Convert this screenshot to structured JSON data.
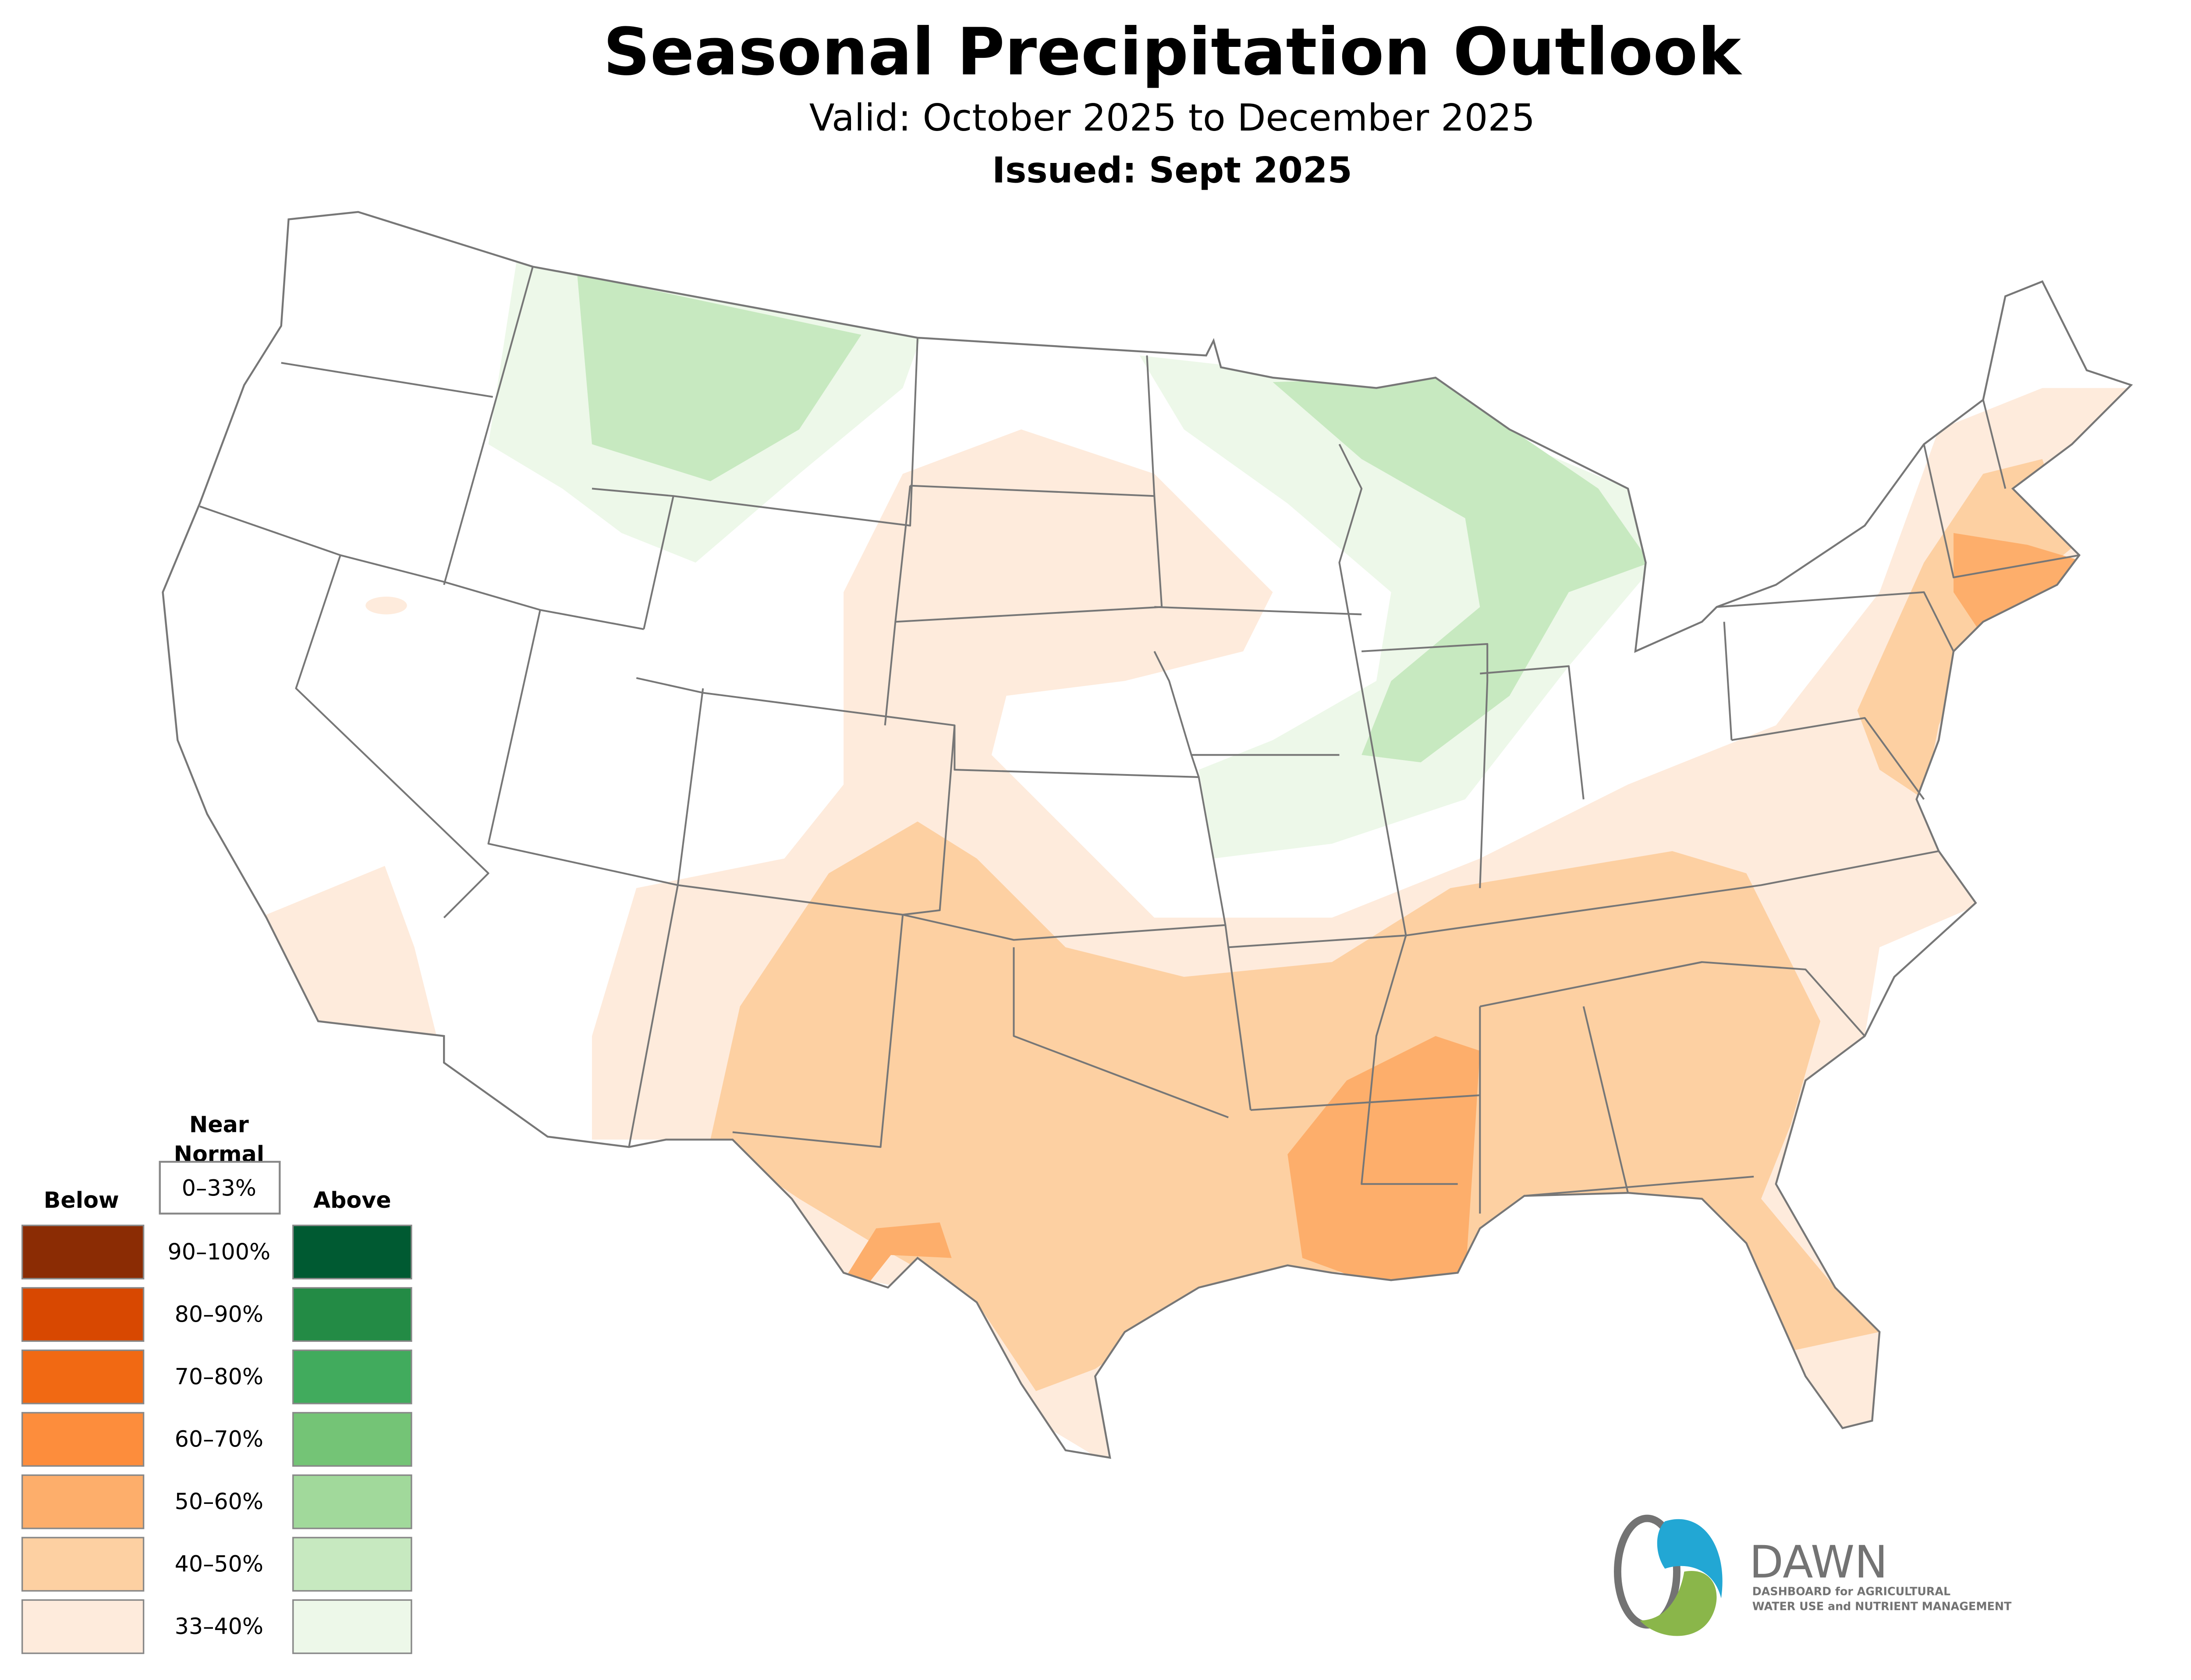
{
  "header": {
    "title": "Seasonal Precipitation Outlook",
    "valid": "Valid: October 2025 to December 2025",
    "issued": "Issued: Sept 2025"
  },
  "legend": {
    "near_normal_line1": "Near",
    "near_normal_line2": "Normal",
    "near_normal_range": "0–33%",
    "below_label": "Below",
    "above_label": "Above",
    "rows": [
      {
        "range": "90–100%",
        "below_color": "#8B2C04",
        "above_color": "#005A32"
      },
      {
        "range": "80–90%",
        "below_color": "#D84801",
        "above_color": "#238B45"
      },
      {
        "range": "70–80%",
        "below_color": "#F16913",
        "above_color": "#41AB5D"
      },
      {
        "range": "60–70%",
        "below_color": "#FD8D3C",
        "above_color": "#74C476"
      },
      {
        "range": "50–60%",
        "below_color": "#FDAE6B",
        "above_color": "#A1D99B"
      },
      {
        "range": "40–50%",
        "below_color": "#FDD0A2",
        "above_color": "#C7E9C0"
      },
      {
        "range": "33–40%",
        "below_color": "#FEEBDC",
        "above_color": "#EDF8E9"
      }
    ]
  },
  "logo": {
    "name": "DAWN",
    "line1": "DASHBOARD for AGRICULTURAL",
    "line2": "WATER USE and NUTRIENT MANAGEMENT",
    "blue": "#22A7D4",
    "green": "#8AB64A",
    "gray": "#737373"
  }
}
